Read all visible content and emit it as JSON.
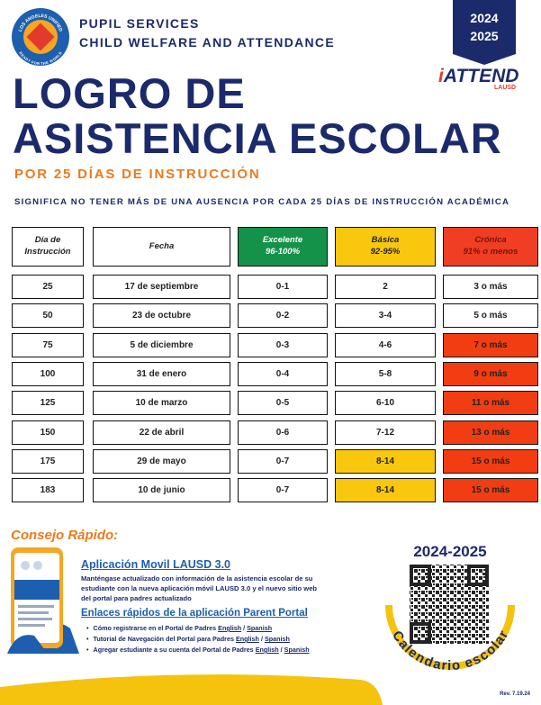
{
  "header": {
    "seal_top": "LOS ANGELES UNIFIED",
    "seal_bottom": "READY FOR THE WORLD",
    "org_lines": [
      "PUPIL SERVICES",
      "CHILD WELFARE AND ATTENDANCE"
    ],
    "years": [
      "2024",
      "2025"
    ],
    "brand_i": "i",
    "brand": "ATTEND",
    "brand_sub": "LAUSD",
    "title_lines": [
      "LOGRO DE",
      "ASISTENCIA ESCOLAR"
    ],
    "subtitle": "POR 25 DÍAS DE INSTRUCCIÓN",
    "note": "SIGNIFICA NO TENER MÁS DE UNA AUSENCIA POR CADA 25 DÍAS DE INSTRUCCIÓN ACADÉMICA"
  },
  "table": {
    "columns": [
      {
        "title": "Día de",
        "sub": "Instrucción",
        "color": "#ffffff"
      },
      {
        "title": "Fecha",
        "color": "#ffffff"
      },
      {
        "title": "Excelente",
        "sub": "96-100%",
        "color": "#14924a"
      },
      {
        "title": "Básica",
        "sub": "92-95%",
        "color": "#f9c80e"
      },
      {
        "title": "Crónica",
        "sub": "91% o menos",
        "color": "#ef3e24"
      }
    ],
    "rows": [
      {
        "cells": [
          "25",
          "17 de septiembre",
          "0-1",
          "2",
          "3 o más"
        ],
        "colors": [
          "#ffffff",
          "#ffffff",
          "#ffffff",
          "#ffffff",
          "#ffffff"
        ]
      },
      {
        "cells": [
          "50",
          "23 de octubre",
          "0-2",
          "3-4",
          "5 o más"
        ],
        "colors": [
          "#ffffff",
          "#ffffff",
          "#ffffff",
          "#ffffff",
          "#ffffff"
        ]
      },
      {
        "cells": [
          "75",
          "5 de diciembre",
          "0-3",
          "4-6",
          "7 o más"
        ],
        "colors": [
          "#ffffff",
          "#ffffff",
          "#ffffff",
          "#ffffff",
          "#f23d12"
        ]
      },
      {
        "cells": [
          "100",
          "31 de enero",
          "0-4",
          "5-8",
          "9 o más"
        ],
        "colors": [
          "#ffffff",
          "#ffffff",
          "#ffffff",
          "#ffffff",
          "#f23d12"
        ]
      },
      {
        "cells": [
          "125",
          "10 de marzo",
          "0-5",
          "6-10",
          "11 o más"
        ],
        "colors": [
          "#ffffff",
          "#ffffff",
          "#ffffff",
          "#ffffff",
          "#f23d12"
        ]
      },
      {
        "cells": [
          "150",
          "22 de abril",
          "0-6",
          "7-12",
          "13 o más"
        ],
        "colors": [
          "#ffffff",
          "#ffffff",
          "#ffffff",
          "#ffffff",
          "#f23d12"
        ]
      },
      {
        "cells": [
          "175",
          "29 de mayo",
          "0-7",
          "8-14",
          "15 o más"
        ],
        "colors": [
          "#ffffff",
          "#ffffff",
          "#ffffff",
          "#f9c80e",
          "#f23d12"
        ]
      },
      {
        "cells": [
          "183",
          "10 de junio",
          "0-7",
          "8-14",
          "15 o más"
        ],
        "colors": [
          "#ffffff",
          "#ffffff",
          "#ffffff",
          "#f9c80e",
          "#f23d12"
        ]
      }
    ]
  },
  "tip": {
    "heading": "Consejo Rápido:",
    "app_title": "Aplicación Movil LAUSD 3.0",
    "app_text": "Manténgase actualizado con información de la asistencia escolar de su estudiante con la nueva aplicación móvil LAUSD 3.0 y el nuevo sitio web del portal para padres actualizado",
    "links_title": "Enlaces rápidos de la aplicación Parent Portal",
    "links": [
      {
        "text": "Cómo registrarse en el Portal de Padres",
        "en": "English",
        "sep": "/",
        "es": "Spanish"
      },
      {
        "text": "Tutorial de Navegación del Portal para Padres",
        "en": "English",
        "sep": "/",
        "es": "Spanish"
      },
      {
        "text": "Agregar estudiante a su cuenta del Portal de Padres",
        "en": "English",
        "sep": "/",
        "es": "Spanish"
      }
    ]
  },
  "calendar": {
    "years": "2024-2025",
    "label": "Calendario escolar"
  },
  "revision": "Rev. 7.19.24"
}
